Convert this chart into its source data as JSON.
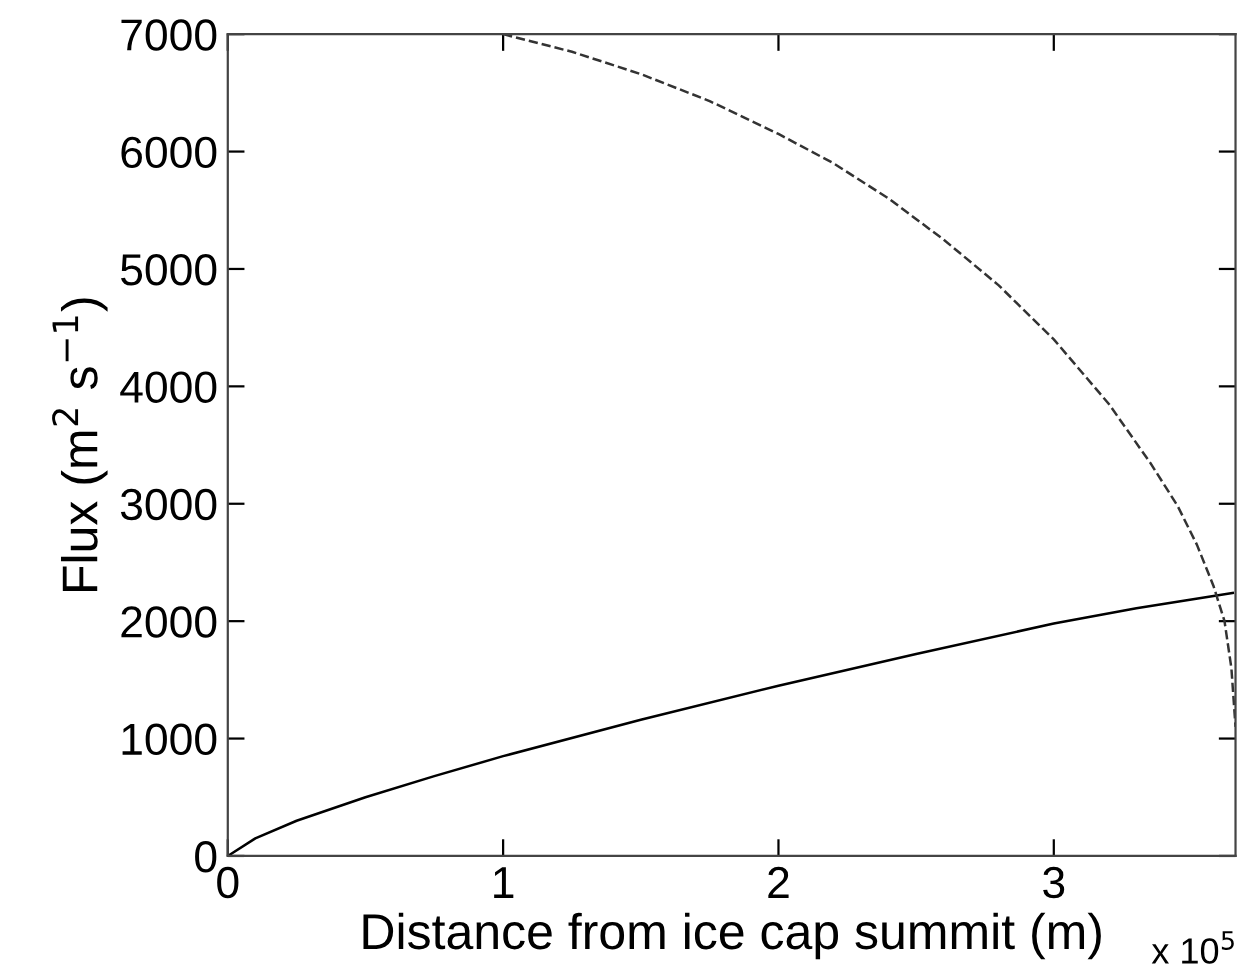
{
  "chart_data": {
    "type": "line",
    "xlabel": "Distance from ice cap summit (m)",
    "ylabel": "Flux (m$^{2}$ s$^{−1}$)",
    "annotations": [
      "x 10$^{5}$"
    ],
    "xlim": [
      0,
      3.66
    ],
    "xticks": [
      0,
      1,
      2,
      3
    ],
    "ylim": [
      0,
      7000
    ],
    "yticks": [
      0,
      1000,
      2000,
      3000,
      4000,
      5000,
      6000,
      7000
    ],
    "grid": false,
    "legend": false,
    "series": [
      {
        "color": "#000000",
        "line_style": "solid",
        "x": [
          0,
          0.1,
          0.25,
          0.5,
          0.75,
          1.0,
          1.5,
          2.0,
          2.5,
          3.0,
          3.3,
          3.65
        ],
        "values": [
          0,
          150,
          300,
          500,
          680,
          850,
          1160,
          1450,
          1720,
          1980,
          2110,
          2240
        ]
      },
      {
        "color": "#333333",
        "line_style": "dashed",
        "x": [
          1.0,
          1.25,
          1.5,
          1.75,
          2.0,
          2.2,
          2.4,
          2.6,
          2.8,
          3.0,
          3.2,
          3.35,
          3.45,
          3.52,
          3.58,
          3.62,
          3.645,
          3.66
        ],
        "values": [
          7000,
          6850,
          6660,
          6430,
          6150,
          5900,
          5600,
          5250,
          4860,
          4400,
          3850,
          3350,
          2980,
          2650,
          2300,
          2000,
          1600,
          1100
        ]
      }
    ]
  }
}
